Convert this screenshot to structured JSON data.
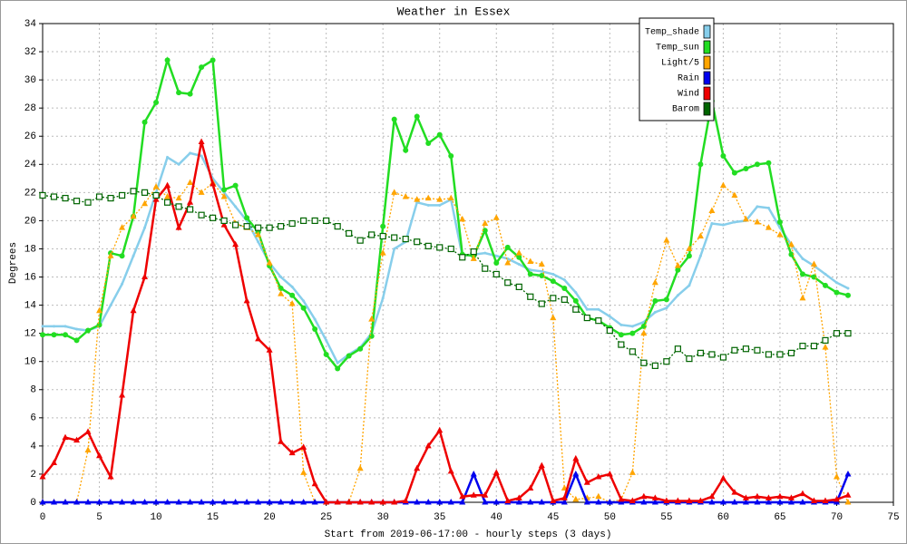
{
  "chart_data": {
    "type": "line",
    "title": "Weather in Essex",
    "ylabel": "Degrees",
    "xlabel": "Start from 2019-06-17:00 - hourly steps (3 days)",
    "x": [
      0,
      1,
      2,
      3,
      4,
      5,
      6,
      7,
      8,
      9,
      10,
      11,
      12,
      13,
      14,
      15,
      16,
      17,
      18,
      19,
      20,
      21,
      22,
      23,
      24,
      25,
      26,
      27,
      28,
      29,
      30,
      31,
      32,
      33,
      34,
      35,
      36,
      37,
      38,
      39,
      40,
      41,
      42,
      43,
      44,
      45,
      46,
      47,
      48,
      49,
      50,
      51,
      52,
      53,
      54,
      55,
      56,
      57,
      58,
      59,
      60,
      61,
      62,
      63,
      64,
      65,
      66,
      67,
      68,
      69,
      70,
      71
    ],
    "xlim": [
      0,
      75
    ],
    "xticks": [
      0,
      5,
      10,
      15,
      20,
      25,
      30,
      35,
      40,
      45,
      50,
      55,
      60,
      65,
      70,
      75
    ],
    "ylim": [
      0,
      34
    ],
    "yticks": [
      0,
      2,
      4,
      6,
      8,
      10,
      12,
      14,
      16,
      18,
      20,
      22,
      24,
      26,
      28,
      30,
      32,
      34
    ],
    "grid": true,
    "legend": "upper right",
    "series": [
      {
        "name": "Temp_shade",
        "color": "#87ceeb",
        "marker": "none",
        "dash": false,
        "values": [
          12.5,
          12.5,
          12.5,
          12.3,
          12.2,
          12.5,
          14.0,
          15.5,
          17.5,
          19.5,
          22.0,
          24.5,
          24.0,
          24.8,
          24.6,
          23.0,
          22.0,
          21.0,
          20.0,
          18.5,
          17.0,
          16.0,
          15.3,
          14.3,
          13.0,
          11.5,
          9.9,
          10.5,
          11.0,
          12.0,
          14.5,
          18.0,
          18.5,
          21.3,
          21.1,
          21.1,
          21.5,
          17.5,
          17.6,
          17.7,
          17.5,
          17.3,
          16.9,
          16.5,
          16.4,
          16.2,
          15.8,
          14.9,
          13.7,
          13.7,
          13.2,
          12.6,
          12.5,
          12.8,
          13.5,
          13.8,
          14.7,
          15.4,
          17.5,
          19.8,
          19.7,
          19.9,
          20.0,
          21.0,
          20.9,
          19.5,
          18.3,
          17.3,
          16.8,
          16.2,
          15.6,
          15.2
        ]
      },
      {
        "name": "Temp_sun",
        "color": "#22dd22",
        "marker": "circle",
        "dash": false,
        "values": [
          11.9,
          11.9,
          11.9,
          11.5,
          12.2,
          12.6,
          17.7,
          17.5,
          20.3,
          27.0,
          28.4,
          31.4,
          29.1,
          29.0,
          30.9,
          31.4,
          22.2,
          22.5,
          20.2,
          19.2,
          16.8,
          15.2,
          14.7,
          13.8,
          12.3,
          10.5,
          9.5,
          10.4,
          10.9,
          11.8,
          19.6,
          27.2,
          25.0,
          27.4,
          25.5,
          26.1,
          24.6,
          17.6,
          17.5,
          19.3,
          17.0,
          18.1,
          17.4,
          16.2,
          16.1,
          15.7,
          15.2,
          14.3,
          13.1,
          12.9,
          12.4,
          11.9,
          12.0,
          12.5,
          14.3,
          14.4,
          16.5,
          17.5,
          24.0,
          28.5,
          24.6,
          23.4,
          23.7,
          24.0,
          24.1,
          19.9,
          17.6,
          16.2,
          16.0,
          15.4,
          14.9,
          14.7
        ]
      },
      {
        "name": "Light/5",
        "color": "#ffa500",
        "marker": "triangle",
        "dash": true,
        "values": [
          0,
          0,
          0,
          0,
          3.7,
          13.6,
          17.5,
          19.5,
          20.3,
          21.2,
          22.4,
          21.7,
          21.6,
          22.7,
          22.0,
          22.7,
          21.7,
          19.8,
          19.5,
          19.0,
          17.0,
          14.8,
          14.1,
          2.1,
          0,
          0,
          0,
          0,
          2.4,
          13.0,
          17.7,
          22.0,
          21.7,
          21.5,
          21.6,
          21.5,
          21.6,
          20.1,
          17.3,
          19.8,
          20.2,
          17.0,
          17.7,
          17.1,
          16.9,
          13.1,
          1.0,
          0.2,
          0.3,
          0.4,
          0,
          0.2,
          2.1,
          12.0,
          15.6,
          18.6,
          16.8,
          18.0,
          18.9,
          20.7,
          22.5,
          21.8,
          20.1,
          19.9,
          19.5,
          19.0,
          18.3,
          14.5,
          16.9,
          11.0,
          1.8,
          0
        ]
      },
      {
        "name": "Rain",
        "color": "#0000ee",
        "marker": "triangle",
        "dash": false,
        "values": [
          0,
          0,
          0,
          0,
          0,
          0,
          0,
          0,
          0,
          0,
          0,
          0,
          0,
          0,
          0,
          0,
          0,
          0,
          0,
          0,
          0,
          0,
          0,
          0,
          0,
          0,
          0,
          0,
          0,
          0,
          0,
          0,
          0,
          0,
          0,
          0,
          0,
          0,
          2,
          0,
          0,
          0,
          0,
          0,
          0,
          0,
          0,
          2,
          0,
          0,
          0,
          0,
          0,
          0,
          0,
          0,
          0,
          0,
          0,
          0,
          0,
          0,
          0,
          0,
          0,
          0,
          0,
          0,
          0,
          0,
          0,
          2
        ]
      },
      {
        "name": "Wind",
        "color": "#ee0000",
        "marker": "triangle",
        "dash": false,
        "values": [
          1.8,
          2.8,
          4.6,
          4.4,
          5.0,
          3.3,
          1.8,
          7.6,
          13.6,
          16.0,
          21.5,
          22.5,
          19.5,
          21.3,
          25.6,
          22.6,
          19.7,
          18.3,
          14.3,
          11.6,
          10.8,
          4.3,
          3.5,
          3.9,
          1.3,
          0,
          0,
          0,
          0,
          0,
          0,
          0,
          0.1,
          2.4,
          4.0,
          5.1,
          2.2,
          0.4,
          0.5,
          0.5,
          2.1,
          0.1,
          0.3,
          1.0,
          2.6,
          0.1,
          0.3,
          3.1,
          1.4,
          1.8,
          2.0,
          0.2,
          0.1,
          0.4,
          0.3,
          0.1,
          0.1,
          0.1,
          0.1,
          0.4,
          1.7,
          0.7,
          0.3,
          0.4,
          0.3,
          0.4,
          0.3,
          0.6,
          0.1,
          0.1,
          0.2,
          0.5
        ]
      },
      {
        "name": "Barom",
        "color": "#006400",
        "marker": "square",
        "dash": true,
        "values": [
          21.8,
          21.7,
          21.6,
          21.4,
          21.3,
          21.7,
          21.6,
          21.8,
          22.1,
          22.0,
          21.8,
          21.3,
          21.0,
          20.8,
          20.4,
          20.2,
          20.0,
          19.7,
          19.6,
          19.5,
          19.5,
          19.6,
          19.8,
          20.0,
          20.0,
          20.0,
          19.6,
          19.1,
          18.6,
          19.0,
          18.9,
          18.8,
          18.7,
          18.5,
          18.2,
          18.1,
          18.0,
          17.4,
          17.8,
          16.6,
          16.2,
          15.6,
          15.3,
          14.6,
          14.1,
          14.5,
          14.4,
          13.7,
          13.1,
          12.9,
          12.2,
          11.2,
          10.7,
          9.9,
          9.7,
          10.0,
          10.9,
          10.2,
          10.6,
          10.5,
          10.3,
          10.8,
          10.9,
          10.8,
          10.5,
          10.5,
          10.6,
          11.1,
          11.1,
          11.5,
          12.0,
          12.0
        ]
      }
    ]
  }
}
